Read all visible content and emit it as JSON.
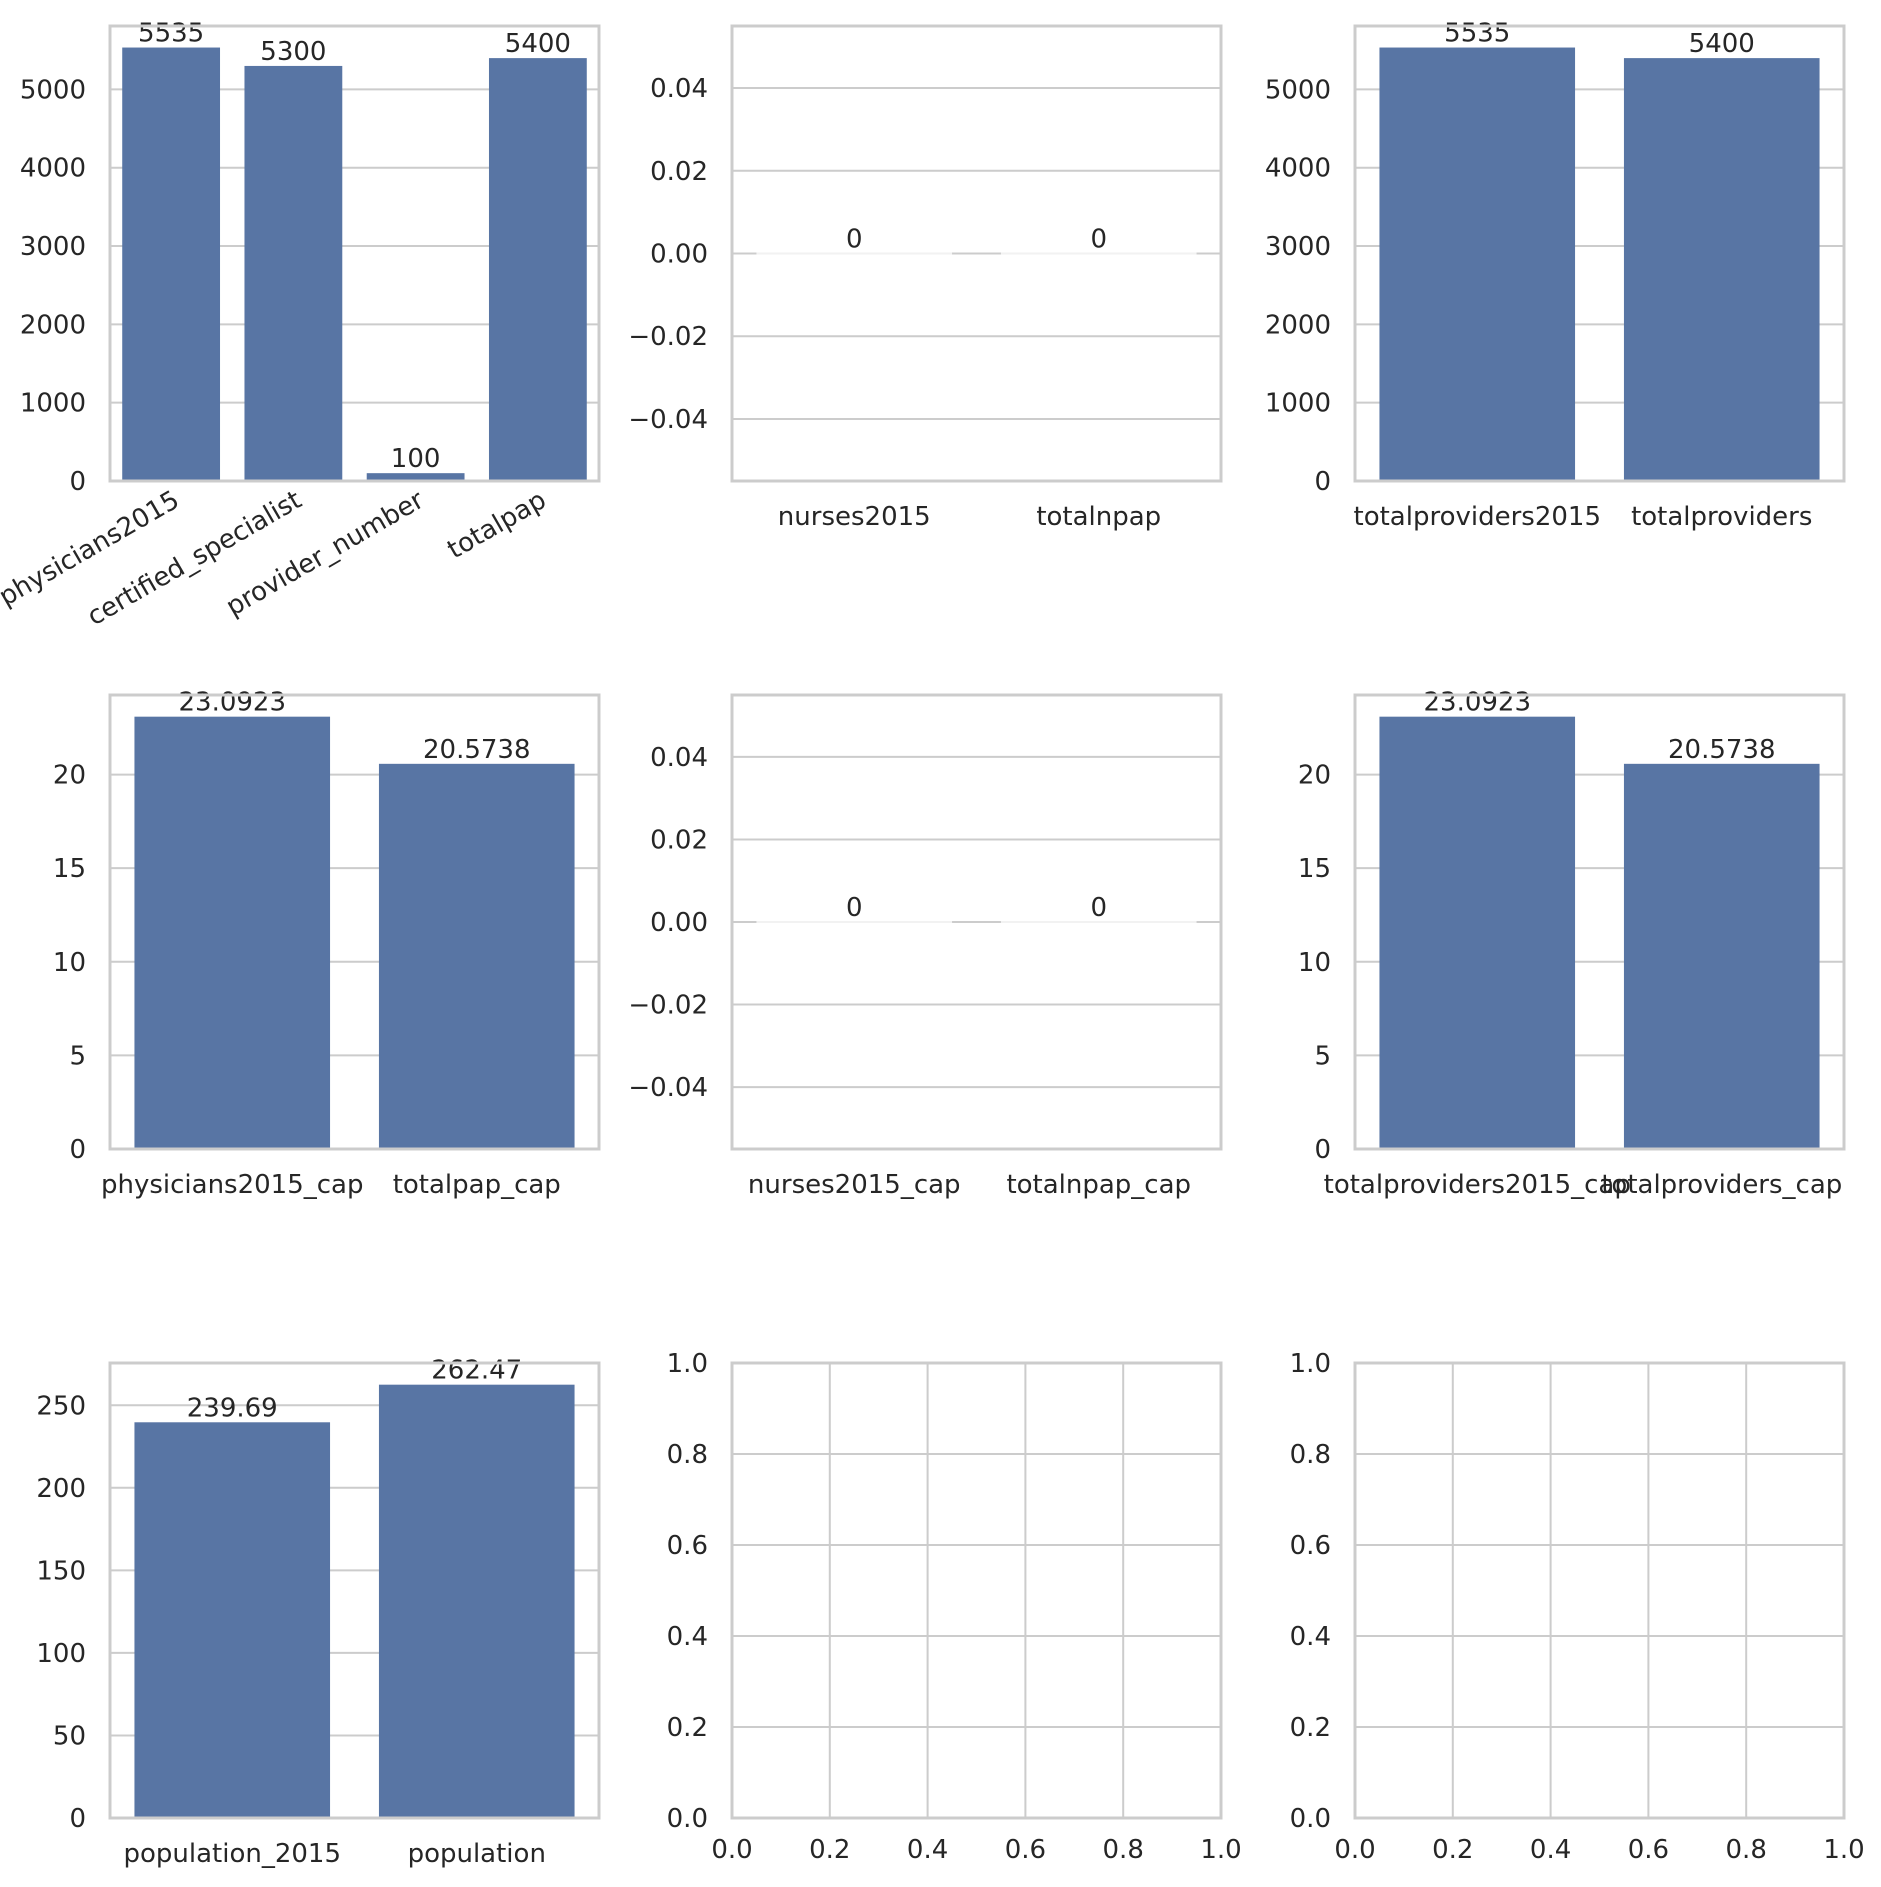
{
  "figure": {
    "bar_color": "#5875a4",
    "grid_color": "#cccccc",
    "text_color": "#262626"
  },
  "chart_data": [
    {
      "type": "bar",
      "categories": [
        "physicians2015",
        "certified_specialist",
        "provider_number",
        "totalpap"
      ],
      "values": [
        5535,
        5300,
        100,
        5400
      ],
      "labels": [
        "5535",
        "5300",
        "100",
        "5400"
      ],
      "ylim": [
        0,
        5810
      ],
      "yticks": [
        0,
        1000,
        2000,
        3000,
        4000,
        5000
      ],
      "ytick_labels": [
        "0",
        "1000",
        "2000",
        "3000",
        "4000",
        "5000"
      ],
      "rotate_xticks": true
    },
    {
      "type": "bar",
      "categories": [
        "nurses2015",
        "totalnpap"
      ],
      "values": [
        0,
        0
      ],
      "labels": [
        "0",
        "0"
      ],
      "ylim": [
        -0.055,
        0.055
      ],
      "yticks": [
        -0.04,
        -0.02,
        0.0,
        0.02,
        0.04
      ],
      "ytick_labels": [
        "−0.04",
        "−0.02",
        "0.00",
        "0.02",
        "0.04"
      ]
    },
    {
      "type": "bar",
      "categories": [
        "totalproviders2015",
        "totalproviders"
      ],
      "values": [
        5535,
        5400
      ],
      "labels": [
        "5535",
        "5400"
      ],
      "ylim": [
        0,
        5810
      ],
      "yticks": [
        0,
        1000,
        2000,
        3000,
        4000,
        5000
      ],
      "ytick_labels": [
        "0",
        "1000",
        "2000",
        "3000",
        "4000",
        "5000"
      ]
    },
    {
      "type": "bar",
      "categories": [
        "physicians2015_cap",
        "totalpap_cap"
      ],
      "values": [
        23.0923,
        20.5738
      ],
      "labels": [
        "23.0923",
        "20.5738"
      ],
      "ylim": [
        0,
        24.25
      ],
      "yticks": [
        0,
        5,
        10,
        15,
        20
      ],
      "ytick_labels": [
        "0",
        "5",
        "10",
        "15",
        "20"
      ]
    },
    {
      "type": "bar",
      "categories": [
        "nurses2015_cap",
        "totalnpap_cap"
      ],
      "values": [
        0,
        0
      ],
      "labels": [
        "0",
        "0"
      ],
      "ylim": [
        -0.055,
        0.055
      ],
      "yticks": [
        -0.04,
        -0.02,
        0.0,
        0.02,
        0.04
      ],
      "ytick_labels": [
        "−0.04",
        "−0.02",
        "0.00",
        "0.02",
        "0.04"
      ]
    },
    {
      "type": "bar",
      "categories": [
        "totalproviders2015_cap",
        "totalproviders_cap"
      ],
      "values": [
        23.0923,
        20.5738
      ],
      "labels": [
        "23.0923",
        "20.5738"
      ],
      "ylim": [
        0,
        24.25
      ],
      "yticks": [
        0,
        5,
        10,
        15,
        20
      ],
      "ytick_labels": [
        "0",
        "5",
        "10",
        "15",
        "20"
      ]
    },
    {
      "type": "bar",
      "categories": [
        "population_2015",
        "population"
      ],
      "values": [
        239.69,
        262.47
      ],
      "labels": [
        "239.69",
        "262.47"
      ],
      "ylim": [
        0,
        275.6
      ],
      "yticks": [
        0,
        50,
        100,
        150,
        200,
        250
      ],
      "ytick_labels": [
        "0",
        "50",
        "100",
        "150",
        "200",
        "250"
      ]
    },
    {
      "type": "empty",
      "xlim": [
        0,
        1
      ],
      "ylim": [
        0,
        1
      ],
      "xticks": [
        0,
        0.2,
        0.4,
        0.6,
        0.8,
        1.0
      ],
      "yticks": [
        0,
        0.2,
        0.4,
        0.6,
        0.8,
        1.0
      ],
      "xtick_labels": [
        "0.0",
        "0.2",
        "0.4",
        "0.6",
        "0.8",
        "1.0"
      ],
      "ytick_labels": [
        "0.0",
        "0.2",
        "0.4",
        "0.6",
        "0.8",
        "1.0"
      ],
      "grid": "both"
    },
    {
      "type": "empty",
      "xlim": [
        0,
        1
      ],
      "ylim": [
        0,
        1
      ],
      "xticks": [
        0,
        0.2,
        0.4,
        0.6,
        0.8,
        1.0
      ],
      "yticks": [
        0,
        0.2,
        0.4,
        0.6,
        0.8,
        1.0
      ],
      "xtick_labels": [
        "0.0",
        "0.2",
        "0.4",
        "0.6",
        "0.8",
        "1.0"
      ],
      "ytick_labels": [
        "0.0",
        "0.2",
        "0.4",
        "0.6",
        "0.8",
        "1.0"
      ],
      "grid": "both"
    }
  ]
}
